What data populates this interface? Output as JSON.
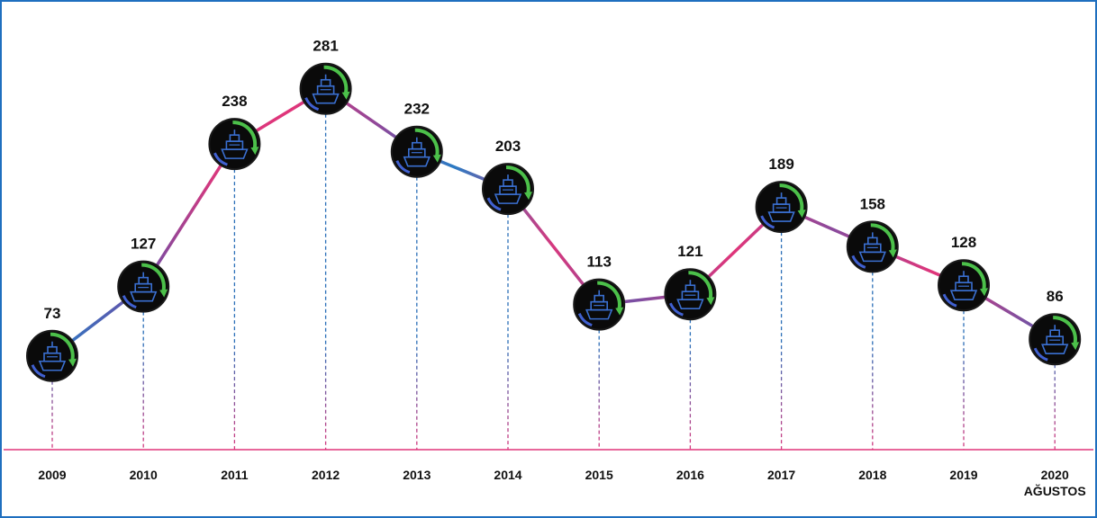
{
  "chart_data": {
    "type": "line",
    "categories": [
      "2009",
      "2010",
      "2011",
      "2012",
      "2013",
      "2014",
      "2015",
      "2016",
      "2017",
      "2018",
      "2019",
      "2020 AĞUSTOS"
    ],
    "values": [
      73,
      127,
      238,
      281,
      232,
      203,
      113,
      121,
      189,
      158,
      128,
      86
    ]
  }
}
